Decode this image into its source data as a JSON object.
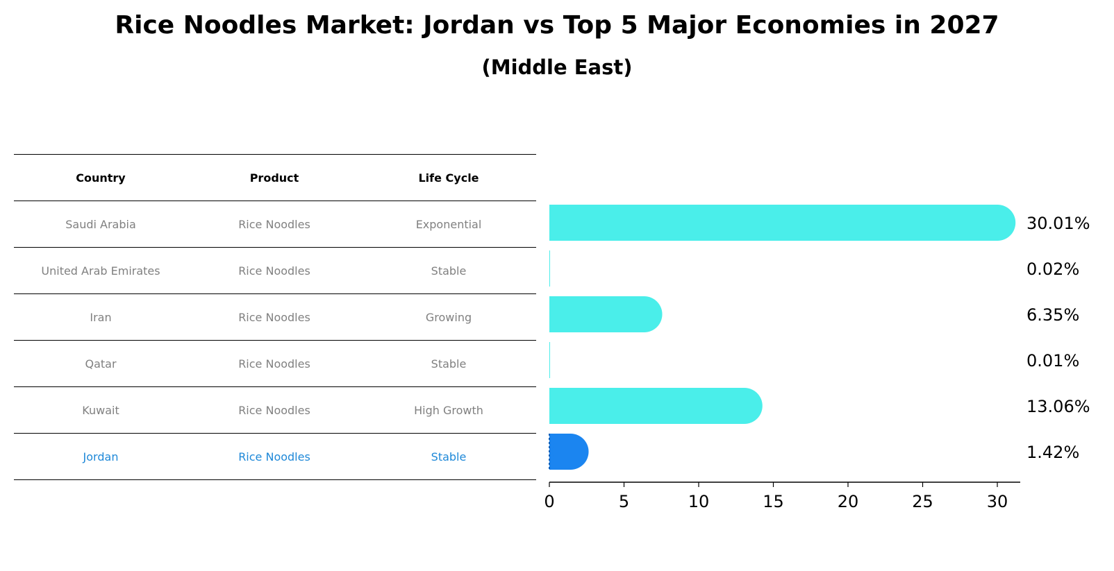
{
  "title": "Rice Noodles Market: Jordan vs Top 5 Major Economies in 2027",
  "subtitle": "(Middle East)",
  "table": {
    "headers": [
      "Country",
      "Product",
      "Life Cycle"
    ],
    "rows": [
      [
        "Saudi Arabia",
        "Rice Noodles",
        "Exponential"
      ],
      [
        "United Arab Emirates",
        "Rice Noodles",
        "Stable"
      ],
      [
        "Iran",
        "Rice Noodles",
        "Growing"
      ],
      [
        "Qatar",
        "Rice Noodles",
        "Stable"
      ],
      [
        "Kuwait",
        "Rice Noodles",
        "High Growth"
      ],
      [
        "Jordan",
        "Rice Noodles",
        "Stable"
      ]
    ],
    "highlight_row": 5
  },
  "colors": {
    "bar": "#4aeeea",
    "highlight_bar": "#1b85f0",
    "highlight_text": "#1e88d8",
    "muted_text": "#808080"
  },
  "chart_data": {
    "type": "bar",
    "orientation": "horizontal",
    "categories": [
      "Saudi Arabia",
      "United Arab Emirates",
      "Iran",
      "Qatar",
      "Kuwait",
      "Jordan"
    ],
    "values": [
      30.01,
      0.02,
      6.35,
      0.01,
      13.06,
      1.42
    ],
    "value_labels": [
      "30.01%",
      "0.02%",
      "6.35%",
      "0.01%",
      "13.06%",
      "1.42%"
    ],
    "xlim": [
      0,
      31.5
    ],
    "x_ticks": [
      0,
      5,
      10,
      15,
      20,
      25,
      30
    ],
    "x_tick_labels": [
      "0",
      "5",
      "10",
      "15",
      "20",
      "25",
      "30"
    ],
    "highlight_index": 5,
    "grid": false
  }
}
